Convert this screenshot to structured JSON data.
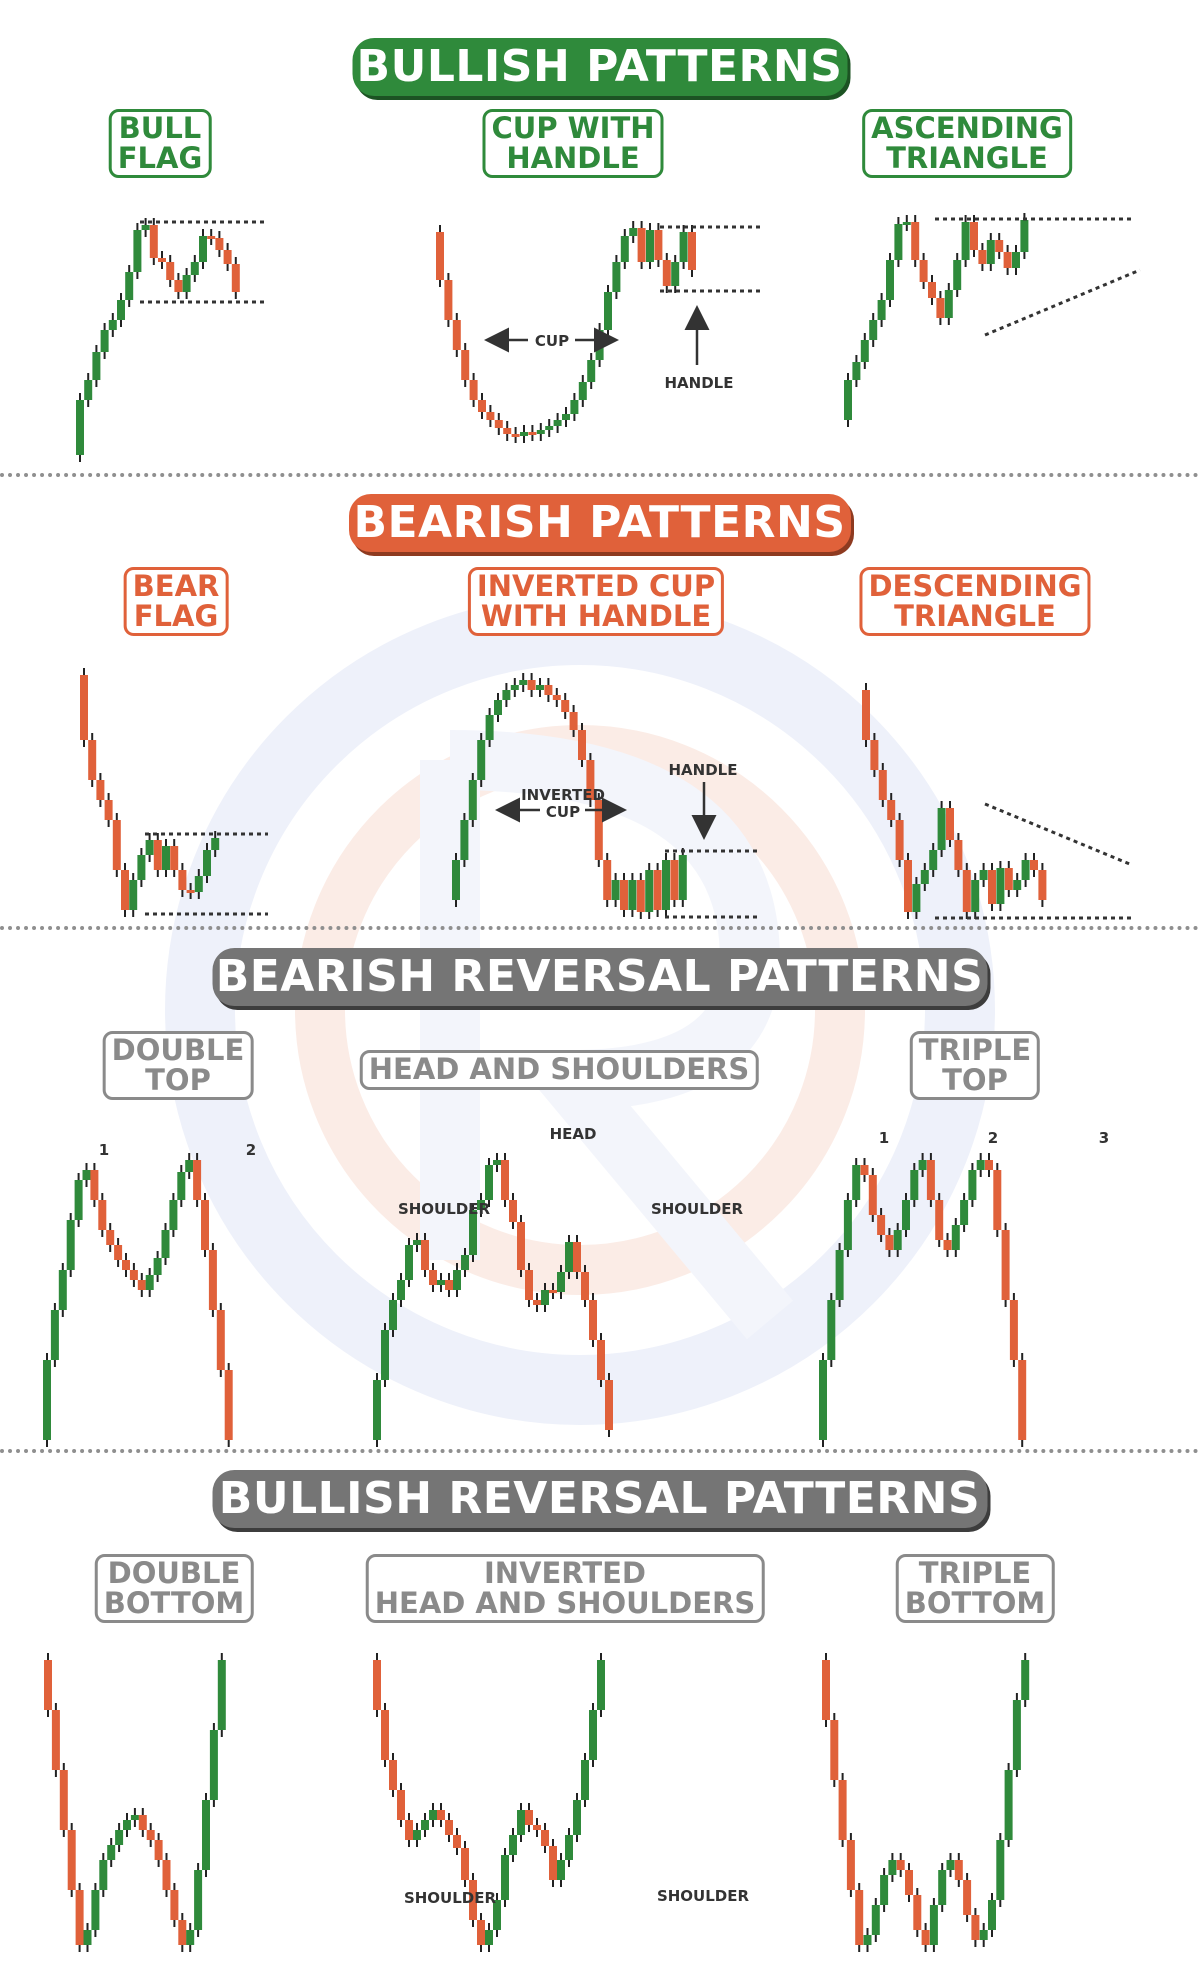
{
  "sections": {
    "bullish": "BULLISH PATTERNS",
    "bearish": "BEARISH PATTERNS",
    "bearish_reversal": "BEARISH REVERSAL PATTERNS",
    "bullish_reversal": "BULLISH REVERSAL PATTERNS"
  },
  "labels": {
    "bull_flag": [
      "BULL",
      "FLAG"
    ],
    "cup_with_handle": [
      "CUP WITH",
      "HANDLE"
    ],
    "ascending_triangle": [
      "ASCENDING",
      "TRIANGLE"
    ],
    "bear_flag": [
      "BEAR",
      "FLAG"
    ],
    "inverted_cup": [
      "INVERTED CUP",
      "WITH HANDLE"
    ],
    "descending_triangle": [
      "DESCENDING",
      "TRIANGLE"
    ],
    "double_top": [
      "DOUBLE",
      "TOP"
    ],
    "head_and_shoulders": [
      "HEAD AND SHOULDERS"
    ],
    "triple_top": [
      "TRIPLE",
      "TOP"
    ],
    "double_bottom": [
      "DOUBLE",
      "BOTTOM"
    ],
    "inverted_hs": [
      "INVERTED",
      "HEAD AND SHOULDERS"
    ],
    "triple_bottom": [
      "TRIPLE",
      "BOTTOM"
    ]
  },
  "annotations": {
    "cup": "CUP",
    "handle": "HANDLE",
    "inverted_cup": [
      "INVERTED",
      "CUP"
    ],
    "head": "HEAD",
    "shoulder": "SHOULDER",
    "peak1": "1",
    "peak2": "2",
    "peak3": "3"
  },
  "colors": {
    "bull": "#2f8a3b",
    "bear": "#e0613a",
    "gray": "#757575"
  }
}
